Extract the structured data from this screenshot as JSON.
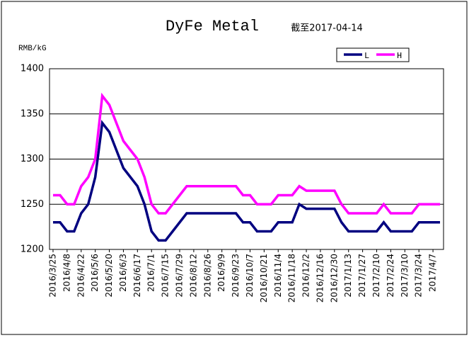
{
  "chart_data": {
    "type": "line",
    "title": "DyFe Metal",
    "subtitle": "截至2017-04-14",
    "y_label": "RMB/kG",
    "categories": [
      "2016/3/25",
      null,
      "2016/4/8",
      null,
      "2016/4/22",
      null,
      "2016/5/6",
      null,
      "2016/5/20",
      null,
      "2016/6/3",
      null,
      "2016/6/17",
      null,
      "2016/7/1",
      null,
      "2016/7/15",
      null,
      "2016/7/29",
      null,
      "2016/8/12",
      null,
      "2016/8/26",
      null,
      "2016/9/9",
      null,
      "2016/9/23",
      null,
      "2016/10/7",
      null,
      "2016/10/21",
      null,
      "2016/11/4",
      null,
      "2016/11/18",
      null,
      "2016/12/2",
      null,
      "2016/12/16",
      null,
      "2016/12/30",
      null,
      "2017/1/13",
      null,
      "2017/1/27",
      null,
      "2017/2/10",
      null,
      "2017/2/24",
      null,
      "2017/3/10",
      null,
      "2017/3/24",
      null,
      "2017/4/7",
      null
    ],
    "series": [
      {
        "name": "L",
        "color": "#000080",
        "values": [
          1230,
          1230,
          1220,
          1220,
          1240,
          1250,
          1280,
          1340,
          1330,
          1310,
          1290,
          1280,
          1270,
          1250,
          1220,
          1210,
          1210,
          1220,
          1230,
          1240,
          1240,
          1240,
          1240,
          1240,
          1240,
          1240,
          1240,
          1230,
          1230,
          1220,
          1220,
          1220,
          1230,
          1230,
          1230,
          1250,
          1245,
          1245,
          1245,
          1245,
          1245,
          1230,
          1220,
          1220,
          1220,
          1220,
          1220,
          1230,
          1220,
          1220,
          1220,
          1220,
          1230,
          1230,
          1230,
          1230
        ]
      },
      {
        "name": "H",
        "color": "#ff00ff",
        "values": [
          1260,
          1260,
          1250,
          1250,
          1270,
          1280,
          1300,
          1370,
          1360,
          1340,
          1320,
          1310,
          1300,
          1280,
          1250,
          1240,
          1240,
          1250,
          1260,
          1270,
          1270,
          1270,
          1270,
          1270,
          1270,
          1270,
          1270,
          1260,
          1260,
          1250,
          1250,
          1250,
          1260,
          1260,
          1260,
          1270,
          1265,
          1265,
          1265,
          1265,
          1265,
          1250,
          1240,
          1240,
          1240,
          1240,
          1240,
          1250,
          1240,
          1240,
          1240,
          1240,
          1250,
          1250,
          1250,
          1250
        ]
      }
    ],
    "ylim": [
      1200,
      1400
    ],
    "yticks": [
      1200,
      1250,
      1300,
      1350,
      1400
    ],
    "grid": true,
    "legend": "top-right"
  }
}
